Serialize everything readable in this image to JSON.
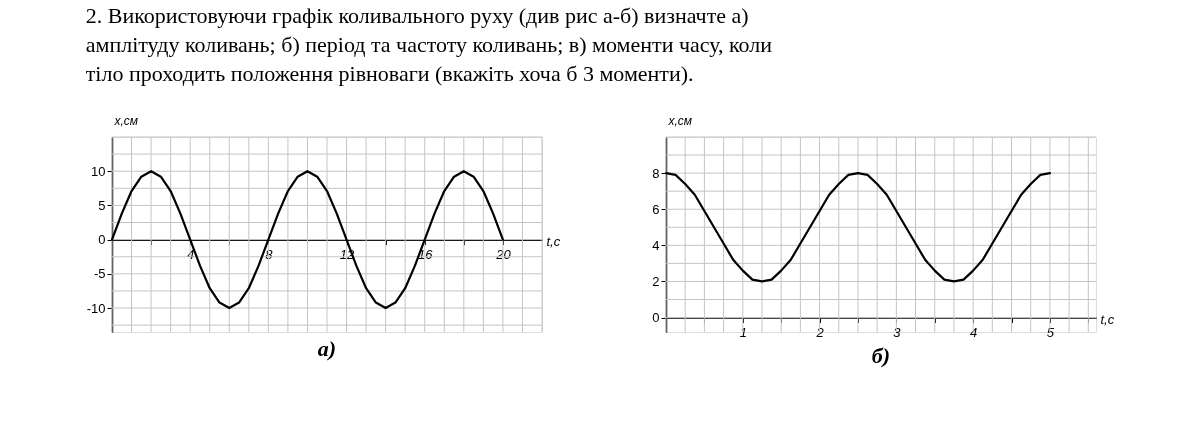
{
  "chart_data": [
    {
      "type": "line",
      "title": "2. Використовуючи графік коливального руху (див рис а-б) визначте            а)\n     амплітуду коливань; б) період та частоту коливань; в) моменти часу, коли\n     тіло проходить положення рівноваги (вкажіть хоча б 3 моменти).",
      "xlabel": "t,c",
      "ylabel": "x,см",
      "annotations": [
        "а)"
      ],
      "grid": true,
      "xlim": [
        0,
        22
      ],
      "ylim": [
        -13.5,
        15
      ],
      "xticks": [
        {
          "value": 0,
          "label": null
        },
        {
          "value": 2,
          "label": null
        },
        4,
        {
          "value": 6,
          "label": null
        },
        8,
        {
          "value": 10,
          "label": null
        },
        12,
        {
          "value": 14,
          "label": null
        },
        16,
        {
          "value": 18,
          "label": null
        },
        20
      ],
      "yticks": [
        -10,
        -5,
        0,
        5,
        10
      ],
      "series": [
        {
          "color": "#000000",
          "x": [
            0,
            0.5,
            1,
            1.5,
            2,
            2.5,
            3,
            3.5,
            4,
            4.5,
            5,
            5.5,
            6,
            6.5,
            7,
            7.5,
            8,
            8.5,
            9,
            9.5,
            10,
            10.5,
            11,
            11.5,
            12,
            12.5,
            13,
            13.5,
            14,
            14.5,
            15,
            15.5,
            16,
            16.5,
            17,
            17.5,
            18,
            18.5,
            19,
            19.5,
            20
          ],
          "values": [
            0,
            3.8,
            7.1,
            9.2,
            10,
            9.2,
            7.1,
            3.8,
            0,
            -3.8,
            -7.1,
            -9.2,
            -10,
            -9.2,
            -7.1,
            -3.8,
            0,
            3.8,
            7.1,
            9.2,
            10,
            9.2,
            7.1,
            3.8,
            0,
            -3.8,
            -7.1,
            -9.2,
            -10,
            -9.2,
            -7.1,
            -3.8,
            0,
            3.8,
            7.1,
            9.2,
            10,
            9.2,
            7.1,
            3.8,
            0
          ]
        }
      ]
    },
    {
      "type": "line",
      "xlabel": "t,c",
      "ylabel": "x,см",
      "annotations": [
        "б)"
      ],
      "grid": true,
      "xlim": [
        0,
        5.6
      ],
      "ylim": [
        -0.8,
        10
      ],
      "xticks": [
        {
          "value": 0,
          "label": null
        },
        {
          "value": 0.5,
          "label": null
        },
        1,
        {
          "value": 1.5,
          "label": null
        },
        2,
        {
          "value": 2.5,
          "label": null
        },
        3,
        {
          "value": 3.5,
          "label": null
        },
        4,
        {
          "value": 4.5,
          "label": null
        },
        5,
        {
          "value": 5.5,
          "label": null
        }
      ],
      "yticks": [
        0,
        2,
        4,
        6,
        8
      ],
      "series": [
        {
          "color": "#000000",
          "x": [
            0,
            0.125,
            0.25,
            0.375,
            0.5,
            0.625,
            0.75,
            0.875,
            1,
            1.125,
            1.25,
            1.375,
            1.5,
            1.625,
            1.75,
            1.875,
            2,
            2.125,
            2.25,
            2.375,
            2.5,
            2.625,
            2.75,
            2.875,
            3,
            3.125,
            3.25,
            3.375,
            3.5,
            3.625,
            3.75,
            3.875,
            4,
            4.125,
            4.25,
            4.375,
            4.5,
            4.625,
            4.75,
            4.875,
            5
          ],
          "values": [
            8,
            7.9,
            7.4,
            6.8,
            5.9,
            5,
            4.1,
            3.2,
            2.6,
            2.1,
            2,
            2.1,
            2.6,
            3.2,
            4.1,
            5,
            5.9,
            6.8,
            7.4,
            7.9,
            8,
            7.9,
            7.4,
            6.8,
            5.9,
            5,
            4.1,
            3.2,
            2.6,
            2.1,
            2,
            2.1,
            2.6,
            3.2,
            4.1,
            5,
            5.9,
            6.8,
            7.4,
            7.9,
            8
          ]
        }
      ]
    }
  ]
}
